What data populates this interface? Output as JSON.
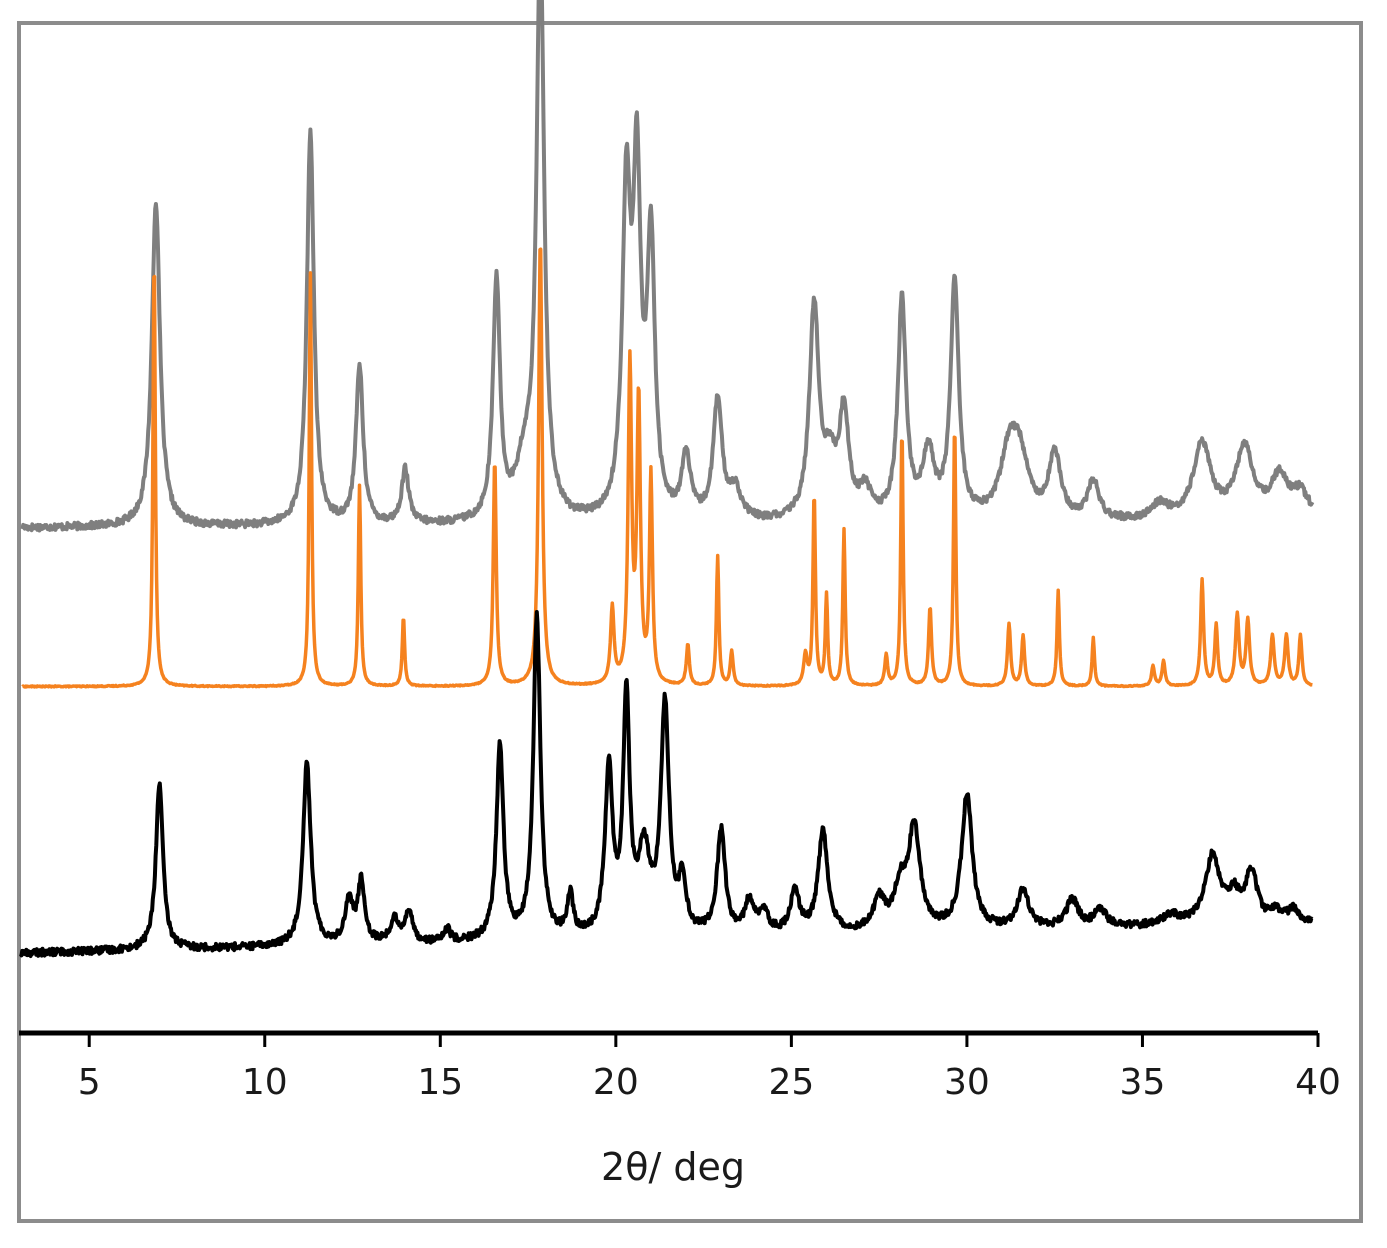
{
  "chart_data": {
    "type": "line",
    "title": "",
    "xlabel": "2θ/ deg",
    "ylabel": "",
    "xlim": [
      3,
      40
    ],
    "ylim": [
      0,
      1
    ],
    "xticks": [
      5,
      10,
      15,
      20,
      25,
      30,
      35,
      40
    ],
    "xtick_labels": [
      "5",
      "10",
      "15",
      "20",
      "25",
      "30",
      "35",
      "40"
    ],
    "grid": false,
    "legend": "none",
    "series": [
      {
        "color": "#7f7f7f",
        "baseline": 0.5,
        "baseline_end": 0.505,
        "peaks": [
          [
            6.9,
            0.322,
            0.14
          ],
          [
            11.3,
            0.391,
            0.12
          ],
          [
            12.7,
            0.156,
            0.12
          ],
          [
            14.0,
            0.054,
            0.12
          ],
          [
            16.6,
            0.237,
            0.12
          ],
          [
            17.85,
            0.568,
            0.13
          ],
          [
            17.4,
            0.05,
            0.3
          ],
          [
            20.3,
            0.313,
            0.14
          ],
          [
            20.6,
            0.32,
            0.13
          ],
          [
            21.0,
            0.27,
            0.13
          ],
          [
            22.0,
            0.062,
            0.15
          ],
          [
            22.9,
            0.118,
            0.15
          ],
          [
            23.4,
            0.03,
            0.2
          ],
          [
            25.65,
            0.21,
            0.16
          ],
          [
            26.1,
            0.05,
            0.2
          ],
          [
            26.5,
            0.103,
            0.16
          ],
          [
            27.1,
            0.028,
            0.2
          ],
          [
            28.15,
            0.217,
            0.14
          ],
          [
            28.9,
            0.065,
            0.2
          ],
          [
            29.65,
            0.235,
            0.14
          ],
          [
            31.2,
            0.06,
            0.3
          ],
          [
            31.5,
            0.055,
            0.3
          ],
          [
            32.5,
            0.065,
            0.2
          ],
          [
            33.6,
            0.038,
            0.2
          ],
          [
            35.5,
            0.015,
            0.3
          ],
          [
            36.7,
            0.075,
            0.3
          ],
          [
            37.9,
            0.07,
            0.3
          ],
          [
            38.9,
            0.04,
            0.3
          ],
          [
            39.5,
            0.025,
            0.3
          ]
        ]
      },
      {
        "color": "#f5821f",
        "baseline": 0.343,
        "baseline_end": 0.343,
        "peaks": [
          [
            6.85,
            0.431,
            0.04
          ],
          [
            11.3,
            0.409,
            0.04
          ],
          [
            12.7,
            0.199,
            0.04
          ],
          [
            13.95,
            0.069,
            0.04
          ],
          [
            16.55,
            0.225,
            0.05
          ],
          [
            17.85,
            0.444,
            0.06
          ],
          [
            19.9,
            0.075,
            0.06
          ],
          [
            20.4,
            0.314,
            0.06
          ],
          [
            20.65,
            0.28,
            0.06
          ],
          [
            21.0,
            0.206,
            0.05
          ],
          [
            22.05,
            0.041,
            0.05
          ],
          [
            22.9,
            0.128,
            0.04
          ],
          [
            23.3,
            0.034,
            0.05
          ],
          [
            25.4,
            0.03,
            0.06
          ],
          [
            25.65,
            0.192,
            0.04
          ],
          [
            26.0,
            0.09,
            0.04
          ],
          [
            26.5,
            0.155,
            0.04
          ],
          [
            27.7,
            0.03,
            0.05
          ],
          [
            28.15,
            0.257,
            0.04
          ],
          [
            28.95,
            0.078,
            0.05
          ],
          [
            29.65,
            0.261,
            0.04
          ],
          [
            31.2,
            0.062,
            0.05
          ],
          [
            31.6,
            0.05,
            0.05
          ],
          [
            32.6,
            0.095,
            0.04
          ],
          [
            33.6,
            0.048,
            0.04
          ],
          [
            35.3,
            0.02,
            0.05
          ],
          [
            35.6,
            0.025,
            0.05
          ],
          [
            36.7,
            0.105,
            0.05
          ],
          [
            37.1,
            0.06,
            0.05
          ],
          [
            37.7,
            0.07,
            0.06
          ],
          [
            38.0,
            0.065,
            0.06
          ],
          [
            38.7,
            0.05,
            0.06
          ],
          [
            39.1,
            0.05,
            0.06
          ],
          [
            39.5,
            0.05,
            0.05
          ]
        ]
      },
      {
        "color": "#000000",
        "baseline": 0.079,
        "baseline_end": 0.108,
        "peaks": [
          [
            7.0,
            0.165,
            0.12
          ],
          [
            11.2,
            0.182,
            0.13
          ],
          [
            12.4,
            0.043,
            0.13
          ],
          [
            12.75,
            0.06,
            0.12
          ],
          [
            13.7,
            0.022,
            0.15
          ],
          [
            14.1,
            0.03,
            0.13
          ],
          [
            15.2,
            0.012,
            0.1
          ],
          [
            16.7,
            0.193,
            0.12
          ],
          [
            17.75,
            0.319,
            0.12
          ],
          [
            18.7,
            0.04,
            0.1
          ],
          [
            19.8,
            0.163,
            0.13
          ],
          [
            20.3,
            0.231,
            0.11
          ],
          [
            20.8,
            0.08,
            0.2
          ],
          [
            21.4,
            0.225,
            0.14
          ],
          [
            21.9,
            0.05,
            0.12
          ],
          [
            23.0,
            0.102,
            0.14
          ],
          [
            23.8,
            0.031,
            0.15
          ],
          [
            24.2,
            0.023,
            0.15
          ],
          [
            25.1,
            0.04,
            0.15
          ],
          [
            25.9,
            0.102,
            0.16
          ],
          [
            27.5,
            0.03,
            0.2
          ],
          [
            28.1,
            0.04,
            0.2
          ],
          [
            28.5,
            0.1,
            0.2
          ],
          [
            30.0,
            0.134,
            0.18
          ],
          [
            31.6,
            0.038,
            0.2
          ],
          [
            33.0,
            0.028,
            0.2
          ],
          [
            33.8,
            0.018,
            0.2
          ],
          [
            35.8,
            0.01,
            0.3
          ],
          [
            37.0,
            0.068,
            0.25
          ],
          [
            37.6,
            0.025,
            0.2
          ],
          [
            38.1,
            0.05,
            0.2
          ],
          [
            38.8,
            0.01,
            0.2
          ],
          [
            39.3,
            0.013,
            0.2
          ]
        ]
      }
    ]
  }
}
